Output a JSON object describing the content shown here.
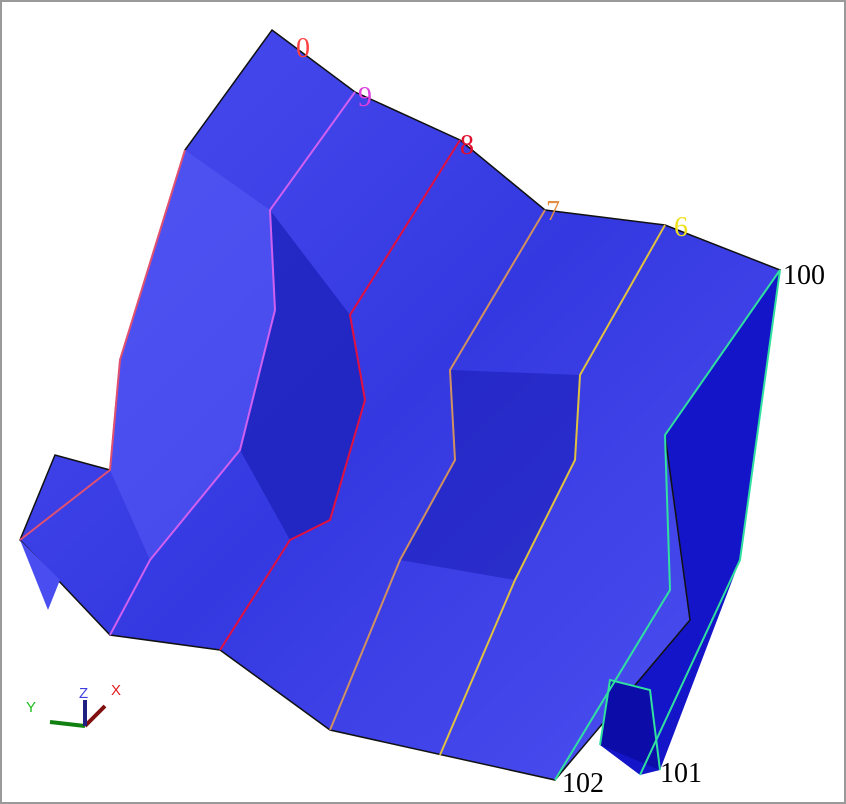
{
  "viewport": {
    "section_labels": [
      "0",
      "9",
      "8",
      "7",
      "6"
    ],
    "edge_labels": [
      "100",
      "101",
      "102"
    ],
    "axis_labels": {
      "x": "X",
      "y": "Y",
      "z": "Z"
    }
  }
}
